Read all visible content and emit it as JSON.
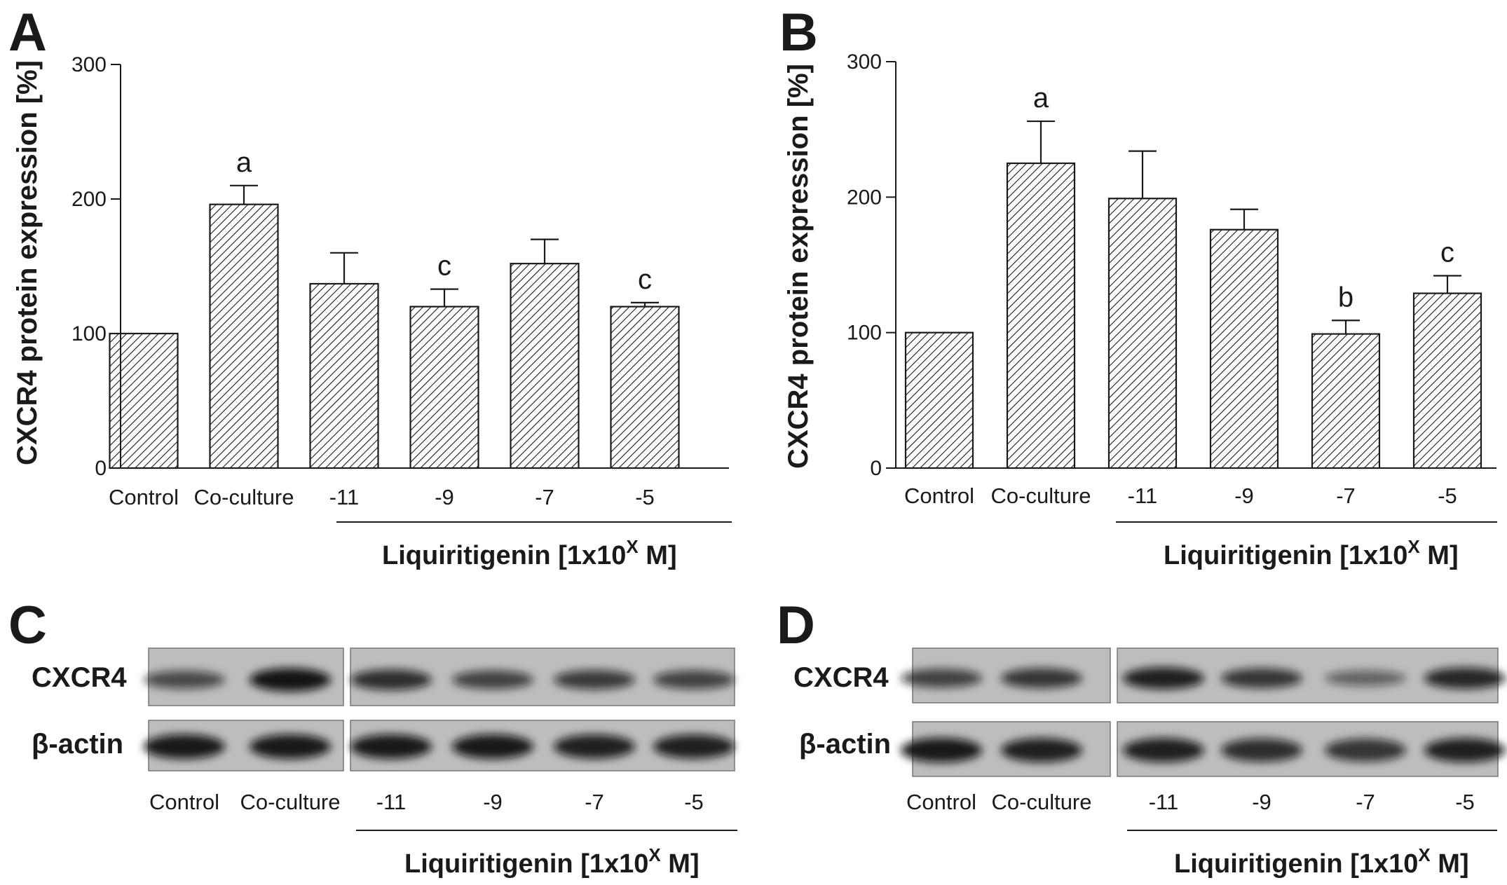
{
  "figure": {
    "panels": {
      "A": {
        "letter": "A"
      },
      "B": {
        "letter": "B"
      },
      "C": {
        "letter": "C"
      },
      "D": {
        "letter": "D"
      }
    },
    "treatment_label": "Liquiritigenin [1x10",
    "treatment_sup": "X",
    "treatment_unit": " M]"
  },
  "blots": [
    {
      "panel": "C",
      "rows": [
        "CXCR4",
        "β-actin"
      ],
      "lanes": [
        "Control",
        "Co-culture",
        "-11",
        "-9",
        "-7",
        "-5"
      ],
      "cxcr4_intensity": [
        0.55,
        0.95,
        0.75,
        0.6,
        0.65,
        0.6
      ],
      "actin_intensity": [
        0.9,
        0.9,
        0.9,
        0.9,
        0.85,
        0.85
      ],
      "treatment_label": "Liquiritigenin [1x10",
      "treatment_sup": "X",
      "treatment_unit": " M]"
    },
    {
      "panel": "D",
      "rows": [
        "CXCR4",
        "β-actin"
      ],
      "lanes": [
        "Control",
        "Co-culture",
        "-11",
        "-9",
        "-7",
        "-5"
      ],
      "cxcr4_intensity": [
        0.6,
        0.7,
        0.85,
        0.7,
        0.35,
        0.8
      ],
      "actin_intensity": [
        0.9,
        0.85,
        0.85,
        0.75,
        0.7,
        0.85
      ],
      "treatment_label": "Liquiritigenin [1x10",
      "treatment_sup": "X",
      "treatment_unit": " M]"
    }
  ],
  "chart_data": [
    {
      "panel": "A",
      "type": "bar",
      "categories": [
        "Control",
        "Co-culture",
        "-11",
        "-9",
        "-7",
        "-5"
      ],
      "values": [
        100,
        196,
        137,
        120,
        152,
        120
      ],
      "errors": [
        0,
        14,
        23,
        13,
        18,
        3
      ],
      "annotations": [
        "",
        "a",
        "",
        "c",
        "",
        "c"
      ],
      "ylabel": "CXCR4 protein expression [%]",
      "ylim": [
        0,
        300
      ],
      "yticks": [
        0,
        100,
        200,
        300
      ],
      "treatment_label": "Liquiritigenin [1x10",
      "treatment_sup": "X",
      "treatment_unit": " M]",
      "grid": false
    },
    {
      "panel": "B",
      "type": "bar",
      "categories": [
        "Control",
        "Co-culture",
        "-11",
        "-9",
        "-7",
        "-5"
      ],
      "values": [
        100,
        225,
        199,
        176,
        99,
        129
      ],
      "errors": [
        0,
        31,
        35,
        15,
        10,
        13
      ],
      "annotations": [
        "",
        "a",
        "",
        "",
        "b",
        "c"
      ],
      "ylabel": "CXCR4 protein expression [%]",
      "ylim": [
        0,
        300
      ],
      "yticks": [
        0,
        100,
        200,
        300
      ],
      "treatment_label": "Liquiritigenin [1x10",
      "treatment_sup": "X",
      "treatment_unit": " M]",
      "grid": false
    }
  ]
}
